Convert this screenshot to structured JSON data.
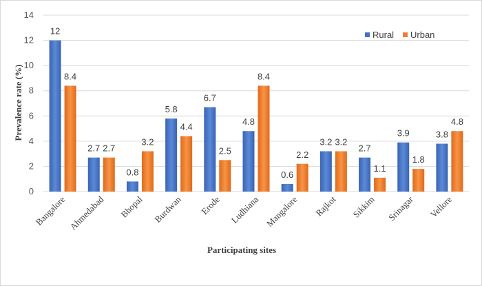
{
  "chart_data": {
    "type": "bar",
    "categories": [
      "Bangalore",
      "Ahmedabad",
      "Bhopal",
      "Burdwan",
      "Erode",
      "Ludhiana",
      "Mangalore",
      "Rajkot",
      "Sikkim",
      "Srinagar",
      "Vellore"
    ],
    "series": [
      {
        "name": "Rural",
        "values": [
          12,
          2.7,
          0.8,
          5.8,
          6.7,
          4.8,
          0.6,
          3.2,
          2.7,
          3.9,
          3.8
        ],
        "color": "#4472c4"
      },
      {
        "name": "Urban",
        "values": [
          8.4,
          2.7,
          3.2,
          4.4,
          2.5,
          8.4,
          2.2,
          3.2,
          1.1,
          1.8,
          4.8
        ],
        "color": "#ed7d31"
      }
    ],
    "xlabel": "Participating sites",
    "ylabel": "Prevalence rate (%)",
    "ylim": [
      0,
      14
    ],
    "yticks": [
      0,
      2,
      4,
      6,
      8,
      10,
      12,
      14
    ],
    "grid": true,
    "legend_position": "top-right"
  }
}
